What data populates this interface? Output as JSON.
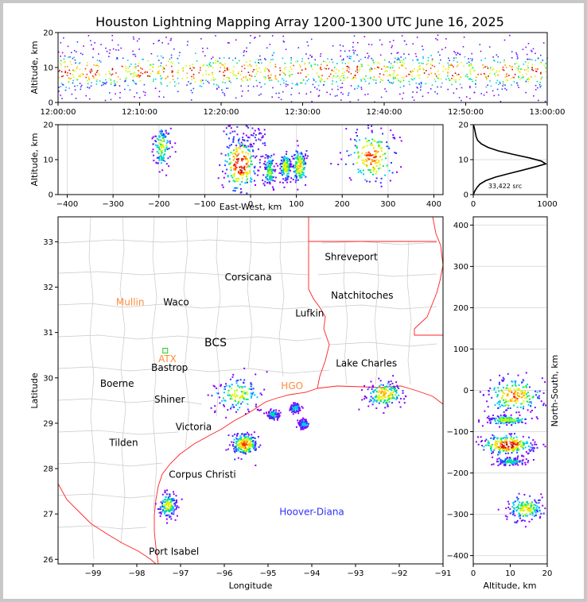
{
  "title": "Houston Lightning Mapping Array 1200-1300 UTC June 16, 2025",
  "colors": {
    "density_scale": [
      "#8800ff",
      "#2a3bff",
      "#00c8ff",
      "#00e676",
      "#c8ff00",
      "#ffe000",
      "#ff9d00",
      "#ff2a00",
      "#b80000",
      "#ffffff"
    ],
    "state_border": "#ff2020",
    "county_lines": "#c8c8c8",
    "station_core": "#ff8c3a",
    "station_other": "#3030ff"
  },
  "chart_data": [
    {
      "id": "time_height",
      "type": "scatter",
      "ylabel": "Altitude, km",
      "ylim": [
        0,
        20
      ],
      "yticks": [
        "0",
        "10",
        "20"
      ],
      "xlim_minutes": [
        0,
        60
      ],
      "xticks": [
        "12:00:00",
        "12:10:00",
        "12:20:00",
        "12:30:00",
        "12:40:00",
        "12:50:00",
        "13:00:00"
      ],
      "activity": {
        "altitude_core_km": [
          4,
          13
        ],
        "altitude_extent_km": [
          0,
          20
        ],
        "peak_density_altitude_km": 9
      }
    },
    {
      "id": "ew_height",
      "type": "scatter",
      "xlabel": "East-West, km",
      "ylabel": "Altitude, km",
      "xlim": [
        -420,
        420
      ],
      "ylim": [
        0,
        20
      ],
      "xticks": [
        "−400",
        "−300",
        "−200",
        "−100",
        "0",
        "100",
        "200",
        "300",
        "400"
      ],
      "yticks": [
        "0",
        "10",
        "20"
      ],
      "clusters": [
        {
          "x": -195,
          "y": 14,
          "sx": 10,
          "sy": 3,
          "peak": 0.55
        },
        {
          "x": -25,
          "y": 9,
          "sx": 18,
          "sy": 4,
          "peak": 1.0
        },
        {
          "x": 40,
          "y": 7,
          "sx": 6,
          "sy": 2.5,
          "peak": 0.5
        },
        {
          "x": 75,
          "y": 8,
          "sx": 6,
          "sy": 2,
          "peak": 0.6
        },
        {
          "x": 105,
          "y": 8.5,
          "sx": 8,
          "sy": 2.5,
          "peak": 0.7
        },
        {
          "x": 262,
          "y": 11,
          "sx": 28,
          "sy": 4,
          "peak": 0.8
        }
      ]
    },
    {
      "id": "altitude_histogram",
      "type": "line",
      "xlim": [
        0,
        1000
      ],
      "ylim": [
        0,
        20
      ],
      "xticks": [
        "0",
        "1000"
      ],
      "yticks": [
        "0",
        "10",
        "20"
      ],
      "annotation": "33,422 src",
      "counts": [
        [
          0,
          0
        ],
        [
          20,
          1
        ],
        [
          50,
          2
        ],
        [
          90,
          3
        ],
        [
          170,
          4
        ],
        [
          300,
          5
        ],
        [
          480,
          6
        ],
        [
          670,
          7
        ],
        [
          850,
          8
        ],
        [
          980,
          8.8
        ],
        [
          920,
          9.6
        ],
        [
          760,
          10.5
        ],
        [
          540,
          11.5
        ],
        [
          340,
          12.5
        ],
        [
          200,
          13.5
        ],
        [
          110,
          14.5
        ],
        [
          60,
          15.5
        ],
        [
          40,
          16.5
        ],
        [
          30,
          17.5
        ],
        [
          20,
          18.5
        ],
        [
          10,
          19.5
        ],
        [
          0,
          20
        ]
      ]
    },
    {
      "id": "plan_view",
      "type": "scatter",
      "xlabel": "Longitude",
      "ylabel": "Latitude",
      "xlim": [
        -99.8,
        -91
      ],
      "ylim": [
        25.9,
        33.55
      ],
      "xticks": [
        "−99",
        "−98",
        "−97",
        "−96",
        "−95",
        "−94",
        "−93",
        "−92",
        "−91"
      ],
      "yticks": [
        "26",
        "27",
        "28",
        "29",
        "30",
        "31",
        "32",
        "33"
      ],
      "cities": [
        {
          "name": "Shreveport",
          "lon": -93.1,
          "lat": 32.6
        },
        {
          "name": "Corsicana",
          "lon": -95.45,
          "lat": 32.15
        },
        {
          "name": "Natchitoches",
          "lon": -92.85,
          "lat": 31.75
        },
        {
          "name": "Waco",
          "lon": -97.1,
          "lat": 31.6
        },
        {
          "name": "Lufkin",
          "lon": -94.05,
          "lat": 31.35
        },
        {
          "name": "BCS",
          "lon": -96.2,
          "lat": 30.7
        },
        {
          "name": "Lake Charles",
          "lon": -92.75,
          "lat": 30.25
        },
        {
          "name": "Bastrop",
          "lon": -97.25,
          "lat": 30.15
        },
        {
          "name": "Boerne",
          "lon": -98.45,
          "lat": 29.8
        },
        {
          "name": "Shiner",
          "lon": -97.25,
          "lat": 29.45
        },
        {
          "name": "Victoria",
          "lon": -96.7,
          "lat": 28.85
        },
        {
          "name": "Tilden",
          "lon": -98.3,
          "lat": 28.5
        },
        {
          "name": "Corpus Christi",
          "lon": -96.5,
          "lat": 27.8
        },
        {
          "name": "Port Isabel",
          "lon": -97.15,
          "lat": 26.1
        }
      ],
      "stations": [
        {
          "name": "Mullin",
          "lon": -98.15,
          "lat": 31.6,
          "color": "#ff8c3a"
        },
        {
          "name": "ATX",
          "lon": -97.3,
          "lat": 30.35,
          "color": "#ff8c3a"
        },
        {
          "name": "HGO",
          "lon": -94.45,
          "lat": 29.75,
          "color": "#ff8c3a"
        },
        {
          "name": "Hoover-Diana",
          "lon": -94.0,
          "lat": 26.98,
          "color": "#3030ff"
        }
      ],
      "station_markers": [
        {
          "lon": -97.35,
          "lat": 30.6
        }
      ],
      "clusters": [
        {
          "x": -95.7,
          "y": 29.65,
          "sx": 0.28,
          "sy": 0.2,
          "peak": 0.55
        },
        {
          "x": -95.55,
          "y": 28.55,
          "sx": 0.14,
          "sy": 0.12,
          "peak": 0.85
        },
        {
          "x": -92.35,
          "y": 29.65,
          "sx": 0.22,
          "sy": 0.14,
          "peak": 0.7
        },
        {
          "x": -97.3,
          "y": 27.2,
          "sx": 0.1,
          "sy": 0.14,
          "peak": 0.6
        },
        {
          "x": -94.4,
          "y": 29.35,
          "sx": 0.06,
          "sy": 0.05,
          "peak": 0.4
        },
        {
          "x": -94.9,
          "y": 29.2,
          "sx": 0.07,
          "sy": 0.05,
          "peak": 0.4
        },
        {
          "x": -94.2,
          "y": 29.0,
          "sx": 0.06,
          "sy": 0.05,
          "peak": 0.35
        }
      ]
    },
    {
      "id": "ns_height",
      "type": "scatter",
      "xlabel": "Altitude, km",
      "ylabel": "North-South, km",
      "xlim": [
        0,
        20
      ],
      "ylim": [
        -420,
        420
      ],
      "xticks": [
        "0",
        "10",
        "20"
      ],
      "yticks": [
        "−400",
        "−300",
        "−200",
        "−100",
        "0",
        "100",
        "200",
        "300",
        "400"
      ],
      "clusters": [
        {
          "x": 11,
          "y": -10,
          "sx": 4,
          "sy": 22,
          "peak": 0.75
        },
        {
          "x": 9,
          "y": -70,
          "sx": 3,
          "sy": 6,
          "peak": 0.55
        },
        {
          "x": 9,
          "y": -130,
          "sx": 3.5,
          "sy": 12,
          "peak": 1.0
        },
        {
          "x": 10,
          "y": -170,
          "sx": 2,
          "sy": 5,
          "peak": 0.4
        },
        {
          "x": 14,
          "y": -285,
          "sx": 2.5,
          "sy": 15,
          "peak": 0.6
        }
      ]
    }
  ]
}
